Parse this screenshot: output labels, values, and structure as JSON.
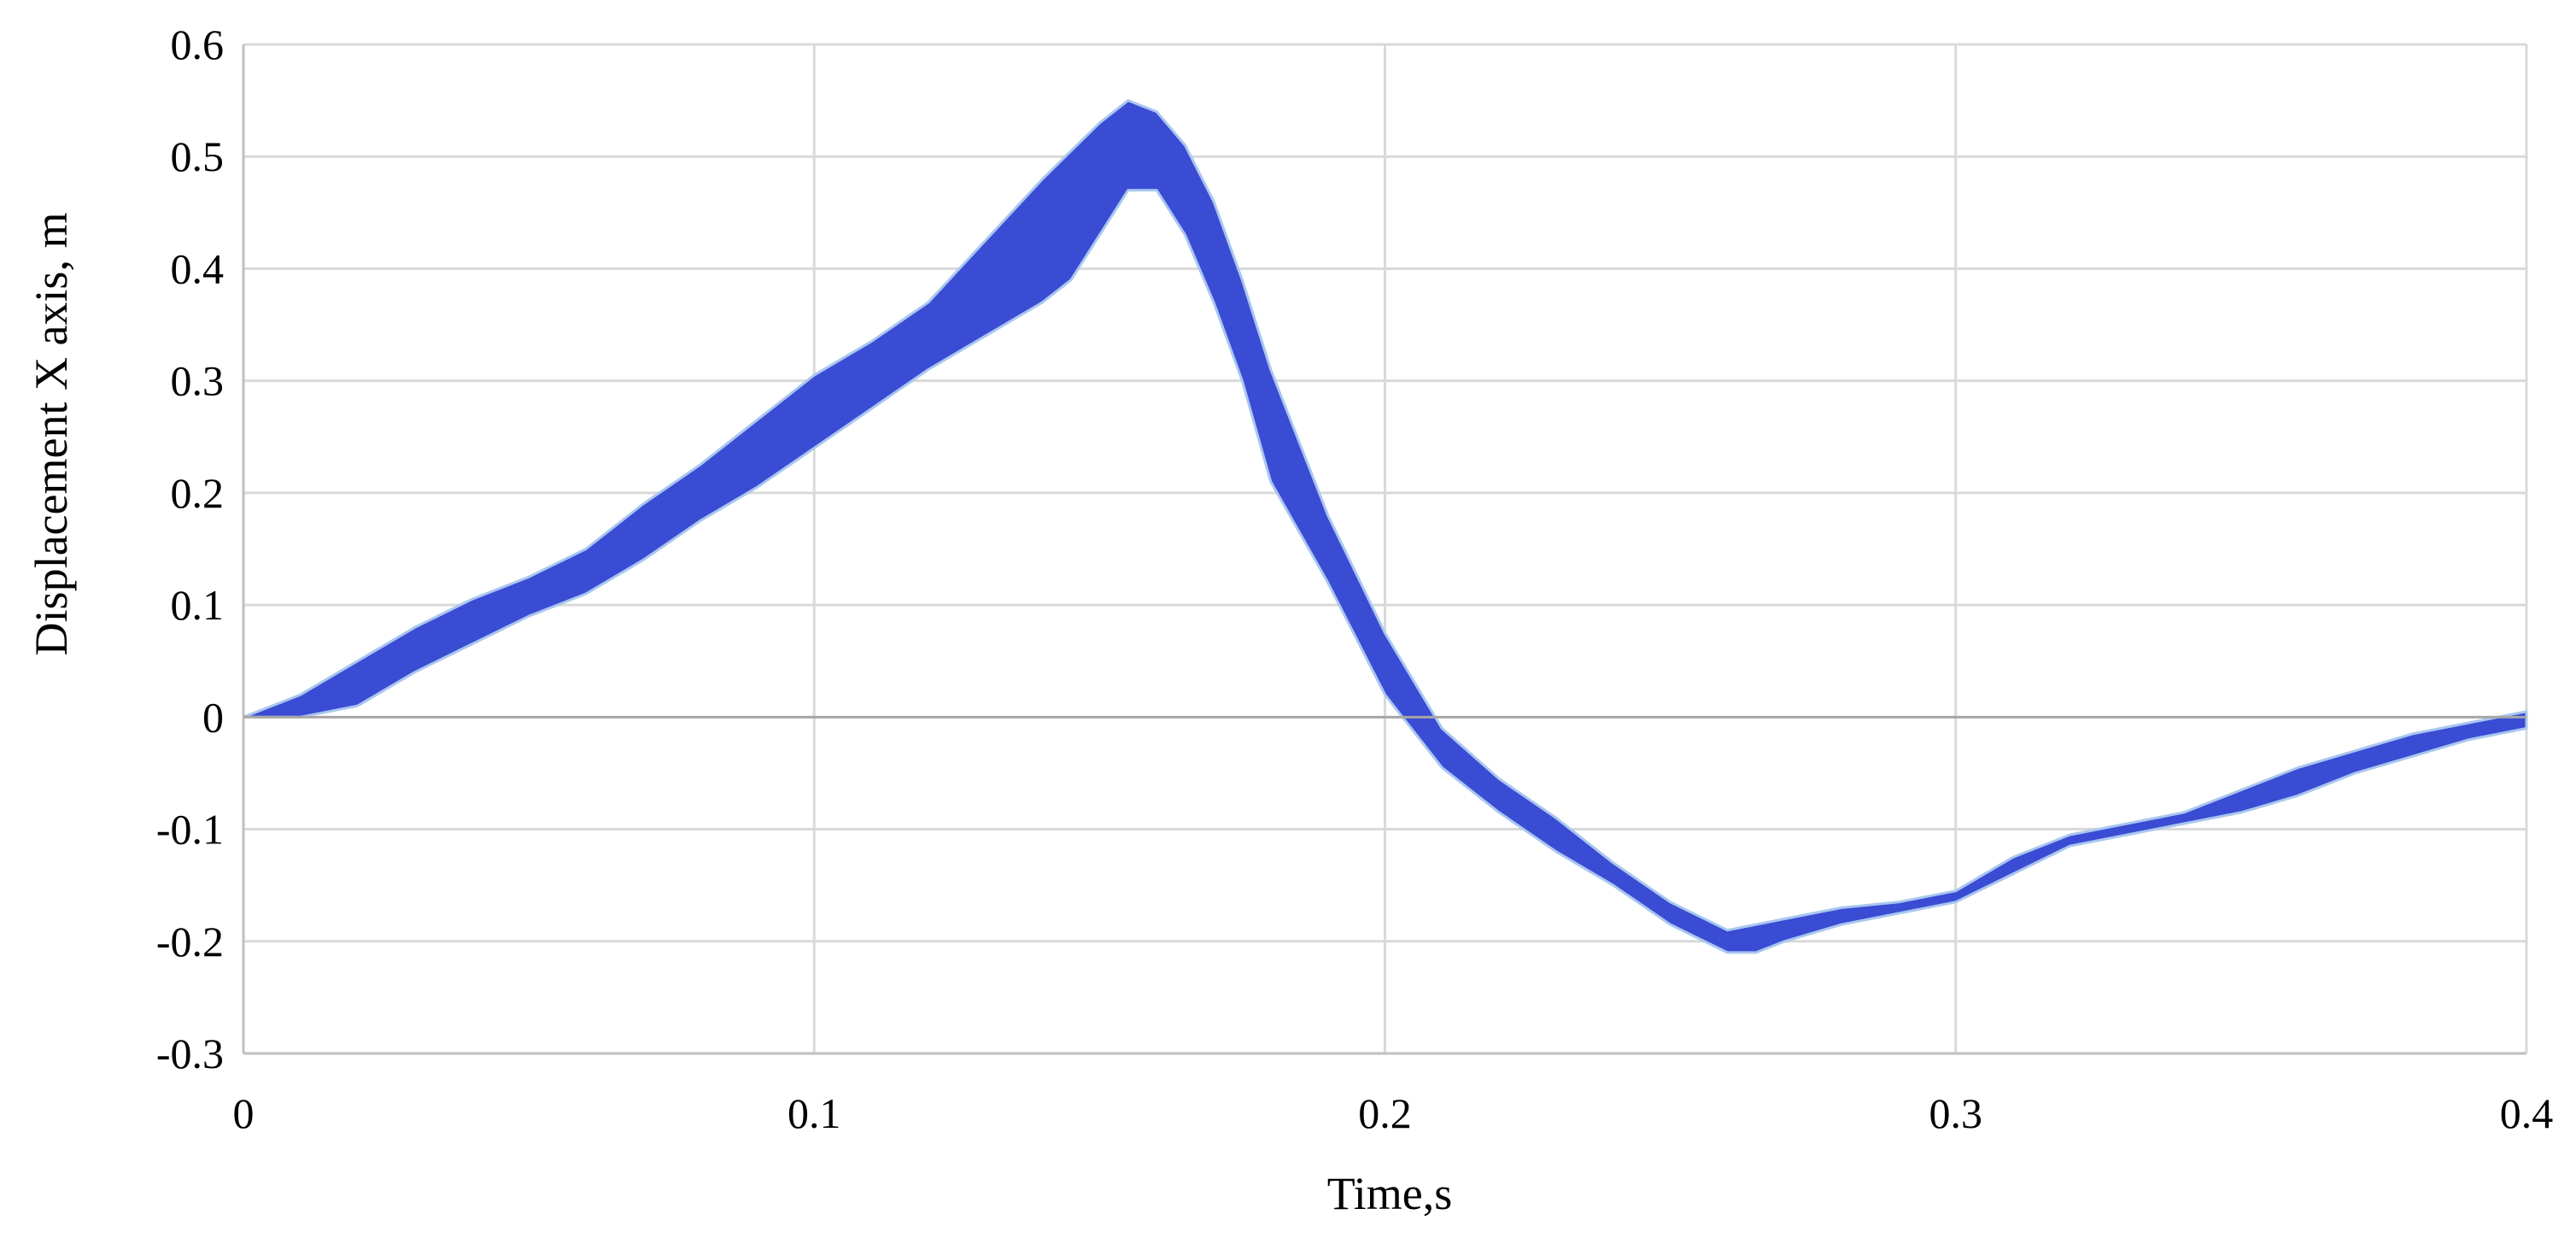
{
  "chart_data": {
    "type": "area",
    "title": "",
    "xlabel": "Time,s",
    "ylabel": "Displacement X axis, m",
    "xlim": [
      0,
      0.4
    ],
    "ylim": [
      -0.3,
      0.6
    ],
    "xticks": [
      0,
      0.1,
      0.2,
      0.3,
      0.4
    ],
    "xtick_labels": [
      "0",
      "0.1",
      "0.2",
      "0.3",
      "0.4"
    ],
    "yticks": [
      -0.3,
      -0.2,
      -0.1,
      0,
      0.1,
      0.2,
      0.3,
      0.4,
      0.5,
      0.6
    ],
    "ytick_labels": [
      "-0.3",
      "-0.2",
      "-0.1",
      "0",
      "0.1",
      "0.2",
      "0.3",
      "0.4",
      "0.5",
      "0.6"
    ],
    "grid": true,
    "legend": "none",
    "color": "#3a4bd4",
    "series": [
      {
        "x": [
          0,
          0.01,
          0.02,
          0.03,
          0.04,
          0.05,
          0.06,
          0.07,
          0.08,
          0.09,
          0.1,
          0.11,
          0.12,
          0.13,
          0.14,
          0.145,
          0.15,
          0.155,
          0.16,
          0.165,
          0.17,
          0.175,
          0.18,
          0.19,
          0.2,
          0.21,
          0.22,
          0.23,
          0.24,
          0.25,
          0.26,
          0.265,
          0.27,
          0.28,
          0.29,
          0.3,
          0.31,
          0.32,
          0.33,
          0.34,
          0.35,
          0.36,
          0.37,
          0.38,
          0.39,
          0.4
        ],
        "upper": [
          0,
          0.02,
          0.05,
          0.08,
          0.105,
          0.125,
          0.15,
          0.19,
          0.225,
          0.265,
          0.305,
          0.335,
          0.37,
          0.425,
          0.48,
          0.505,
          0.53,
          0.55,
          0.54,
          0.51,
          0.46,
          0.39,
          0.31,
          0.18,
          0.075,
          -0.01,
          -0.055,
          -0.09,
          -0.13,
          -0.165,
          -0.19,
          -0.185,
          -0.18,
          -0.17,
          -0.165,
          -0.155,
          -0.125,
          -0.105,
          -0.095,
          -0.085,
          -0.065,
          -0.045,
          -0.03,
          -0.015,
          -0.005,
          0.005
        ],
        "lower": [
          0,
          0.0,
          0.01,
          0.04,
          0.065,
          0.09,
          0.11,
          0.14,
          0.175,
          0.205,
          0.24,
          0.275,
          0.31,
          0.34,
          0.37,
          0.39,
          0.43,
          0.47,
          0.47,
          0.43,
          0.37,
          0.3,
          0.21,
          0.12,
          0.02,
          -0.045,
          -0.085,
          -0.12,
          -0.15,
          -0.185,
          -0.21,
          -0.21,
          -0.2,
          -0.185,
          -0.175,
          -0.165,
          -0.14,
          -0.115,
          -0.105,
          -0.095,
          -0.085,
          -0.07,
          -0.05,
          -0.035,
          -0.02,
          -0.01
        ]
      }
    ]
  }
}
